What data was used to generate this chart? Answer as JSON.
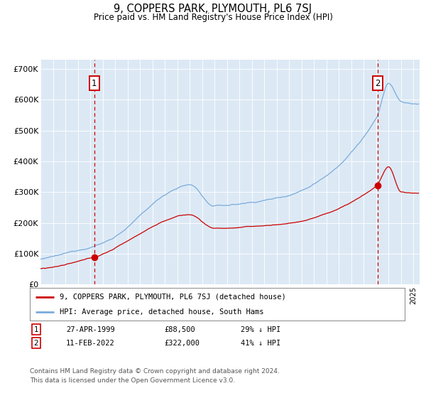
{
  "title": "9, COPPERS PARK, PLYMOUTH, PL6 7SJ",
  "subtitle": "Price paid vs. HM Land Registry's House Price Index (HPI)",
  "ylabel_ticks": [
    "£0",
    "£100K",
    "£200K",
    "£300K",
    "£400K",
    "£500K",
    "£600K",
    "£700K"
  ],
  "ytick_values": [
    0,
    100000,
    200000,
    300000,
    400000,
    500000,
    600000,
    700000
  ],
  "ylim": [
    0,
    730000
  ],
  "xlim_start": 1995.0,
  "xlim_end": 2025.5,
  "background_color": "#dce9f5",
  "grid_color": "#ffffff",
  "hpi_color": "#7aabdb",
  "price_color": "#cc0000",
  "marker1_year": 1999.32,
  "marker1_price": 88500,
  "marker1_label": "27-APR-1999",
  "marker1_value": "£88,500",
  "marker1_pct": "29% ↓ HPI",
  "marker2_year": 2022.12,
  "marker2_price": 322000,
  "marker2_label": "11-FEB-2022",
  "marker2_value": "£322,000",
  "marker2_pct": "41% ↓ HPI",
  "legend_label1": "9, COPPERS PARK, PLYMOUTH, PL6 7SJ (detached house)",
  "legend_label2": "HPI: Average price, detached house, South Hams",
  "footer": "Contains HM Land Registry data © Crown copyright and database right 2024.\nThis data is licensed under the Open Government Licence v3.0."
}
